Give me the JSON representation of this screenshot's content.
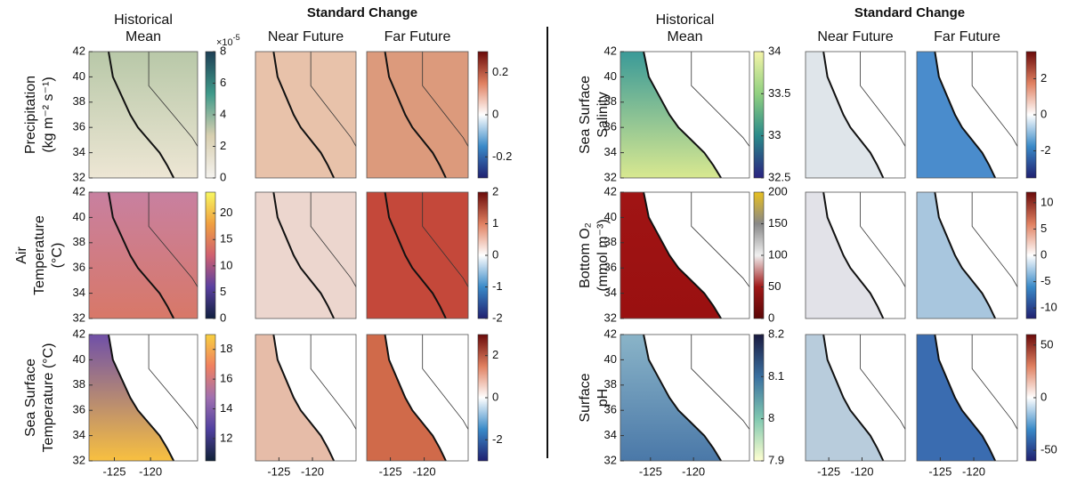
{
  "map_axes": {
    "ylim": [
      32,
      42
    ],
    "yticks": [
      42,
      40,
      38,
      36,
      34,
      32
    ],
    "xlim": [
      -128.5,
      -113.5
    ],
    "xticks": [
      -125,
      -120
    ]
  },
  "left": {
    "header": "Standard Change",
    "column_titles": [
      [
        "Historical",
        "Mean"
      ],
      [
        "Near Future"
      ],
      [
        "Far Future"
      ]
    ],
    "rows": [
      {
        "label": [
          "Precipitation",
          "(kg m⁻² s⁻¹)"
        ],
        "mean_scale": {
          "range": [
            0,
            8
          ],
          "ticks": [
            0,
            2,
            4,
            6,
            8
          ],
          "multiplier": "×10",
          "exponent": "-5"
        },
        "change_scale": {
          "range": [
            -0.3,
            0.3
          ],
          "ticks": [
            -0.2,
            0,
            0.2
          ]
        }
      },
      {
        "label": [
          "Air",
          "Temperature",
          "(°C)"
        ],
        "mean_scale": {
          "range": [
            0,
            24
          ],
          "ticks": [
            0,
            5,
            10,
            15,
            20
          ]
        },
        "change_scale": {
          "range": [
            -2,
            2
          ],
          "ticks": [
            -2,
            -1,
            0,
            1,
            2
          ]
        }
      },
      {
        "label": [
          "Sea Surface",
          "Temperature (°C)"
        ],
        "mean_scale": {
          "range": [
            10.5,
            19
          ],
          "ticks": [
            12,
            14,
            16,
            18
          ]
        },
        "change_scale": {
          "range": [
            -3,
            3
          ],
          "ticks": [
            -2,
            0,
            2
          ]
        }
      }
    ]
  },
  "right": {
    "header": "Standard Change",
    "column_titles": [
      [
        "Historical",
        "Mean"
      ],
      [
        "Near Future"
      ],
      [
        "Far Future"
      ]
    ],
    "rows": [
      {
        "label": [
          "Sea Surface",
          "Salinity"
        ],
        "mean_scale": {
          "range": [
            32.5,
            34
          ],
          "ticks": [
            32.5,
            33,
            33.5,
            34
          ]
        },
        "change_scale": {
          "range": [
            -3.5,
            3.5
          ],
          "ticks": [
            -2,
            0,
            2
          ]
        }
      },
      {
        "label": [
          "Bottom O₂",
          "(mmol m⁻³)"
        ],
        "mean_scale": {
          "range": [
            0,
            200
          ],
          "ticks": [
            0,
            50,
            100,
            150,
            200
          ]
        },
        "change_scale": {
          "range": [
            -12,
            12
          ],
          "ticks": [
            -10,
            -5,
            0,
            5,
            10
          ]
        }
      },
      {
        "label": [
          "Surface",
          "pH"
        ],
        "mean_scale": {
          "range": [
            7.9,
            8.2
          ],
          "ticks": [
            7.9,
            8,
            8.1,
            8.2
          ]
        },
        "change_scale": {
          "range": [
            -60,
            60
          ],
          "ticks": [
            -50,
            0,
            50
          ]
        }
      }
    ]
  }
}
